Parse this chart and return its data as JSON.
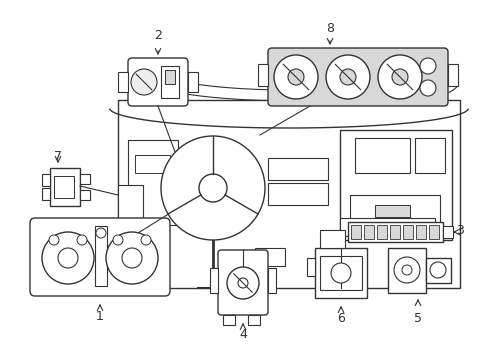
{
  "bg_color": "#ffffff",
  "line_color": "#333333",
  "gray_fill": "#d8d8d8",
  "light_gray": "#eeeeee",
  "figsize": [
    4.89,
    3.6
  ],
  "dpi": 100,
  "xlim": [
    0,
    489
  ],
  "ylim": [
    0,
    360
  ]
}
